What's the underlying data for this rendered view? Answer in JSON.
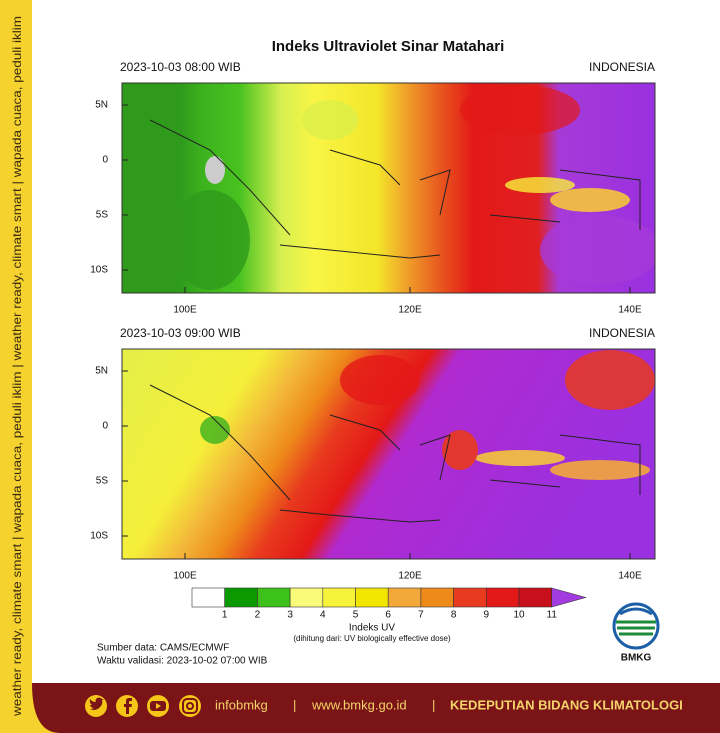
{
  "sidebar": {
    "text": "weather ready, climate smart | wapada cuaca, peduli iklim | weather ready, climate smart | wapada cuaca, peduli iklim"
  },
  "title": "Indeks Ultraviolet Sinar Matahari",
  "panels": [
    {
      "datetime": "2023-10-03  08:00 WIB",
      "region": "INDONESIA",
      "lat_labels": [
        "5N",
        "0",
        "5S",
        "10S"
      ],
      "lon_labels": [
        "100E",
        "120E",
        "140E"
      ]
    },
    {
      "datetime": "2023-10-03  09:00 WIB",
      "region": "INDONESIA",
      "lat_labels": [
        "5N",
        "0",
        "5S",
        "10S"
      ],
      "lon_labels": [
        "100E",
        "120E",
        "140E"
      ]
    }
  ],
  "colorbar": {
    "ticks": [
      1,
      2,
      3,
      4,
      5,
      6,
      7,
      8,
      9,
      10,
      11
    ],
    "colors": [
      "#ffffff",
      "#0a9a00",
      "#3cc21a",
      "#fbfb7a",
      "#f7f23a",
      "#f2e600",
      "#f3a93a",
      "#ee8a1a",
      "#e83a1e",
      "#e31818",
      "#c8101c",
      "#a23be0"
    ],
    "label": "Indeks UV",
    "note": "(dihitung dari: UV biologically effective dose)"
  },
  "source": "Sumber data: CAMS/ECMWF",
  "validity": "Waktu validasi: 2023-10-02 07:00 WIB",
  "logo": "BMKG",
  "footer": {
    "handle": "infobmkg",
    "separators": [
      "|",
      "|"
    ],
    "website": "www.bmkg.go.id",
    "department": "KEDEPUTIAN BIDANG KLIMATOLOGI"
  }
}
